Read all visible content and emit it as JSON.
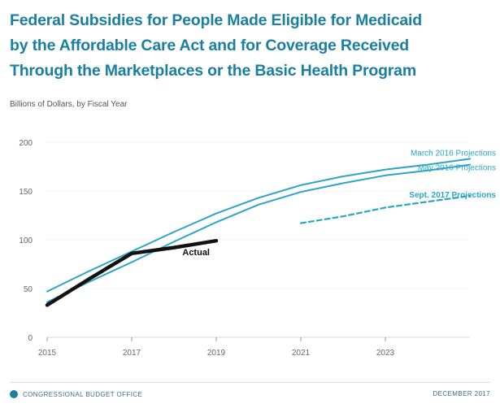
{
  "title_lines": [
    "Federal Subsidies for People Made Eligible for Medicaid",
    "by the Affordable Care Act and for Coverage Received",
    "Through the Marketplaces or the Basic Health Program"
  ],
  "y_axis_caption": "Billions of Dollars, by Fiscal Year",
  "footer": {
    "organization": "CONGRESSIONAL BUDGET OFFICE",
    "date": "DECEMBER 2017"
  },
  "colors": {
    "title": "#1a7fa0",
    "projection": "#2aa6c4",
    "actual": "#111111",
    "grid": "#d9d9d9"
  },
  "chart_data": {
    "type": "line",
    "title": "Federal Subsidies for People Made Eligible for Medicaid by the Affordable Care Act and for Coverage Received Through the Marketplaces or the Basic Health Program",
    "ylabel": "Billions of Dollars, by Fiscal Year",
    "xlabel": "",
    "xlim": [
      2015,
      2025
    ],
    "ylim": [
      0,
      200
    ],
    "x_ticks": [
      2015,
      2017,
      2019,
      2021,
      2023
    ],
    "x_tick_labels": [
      "2015",
      "2017",
      "2019",
      "2021",
      "2023"
    ],
    "y_ticks": [
      0,
      50,
      100,
      150,
      200
    ],
    "y_tick_labels": [
      "0",
      "50",
      "100",
      "150",
      "200"
    ],
    "grid": true,
    "series": [
      {
        "name": "March 2016 Projections",
        "style": "projection",
        "x": [
          2015,
          2016,
          2017,
          2018,
          2019,
          2020,
          2021,
          2022,
          2023,
          2024,
          2025
        ],
        "y": [
          47,
          68,
          88,
          108,
          127,
          143,
          156,
          165,
          172,
          177,
          183
        ]
      },
      {
        "name": "May 2016 Projections",
        "style": "projection",
        "x": [
          2015,
          2016,
          2017,
          2018,
          2019,
          2020,
          2021,
          2022,
          2023,
          2024,
          2025
        ],
        "y": [
          36,
          57,
          77,
          98,
          118,
          136,
          149,
          158,
          166,
          171,
          177
        ]
      },
      {
        "name": "Sept. 2017 Projections",
        "style": "projection-dashed",
        "x": [
          2021,
          2022,
          2023,
          2024,
          2025
        ],
        "y": [
          117,
          124,
          133,
          139,
          145
        ]
      },
      {
        "name": "Actual",
        "style": "actual",
        "x": [
          2015,
          2016,
          2017,
          2018,
          2019
        ],
        "y": [
          33,
          60,
          86,
          92,
          99
        ]
      }
    ]
  }
}
